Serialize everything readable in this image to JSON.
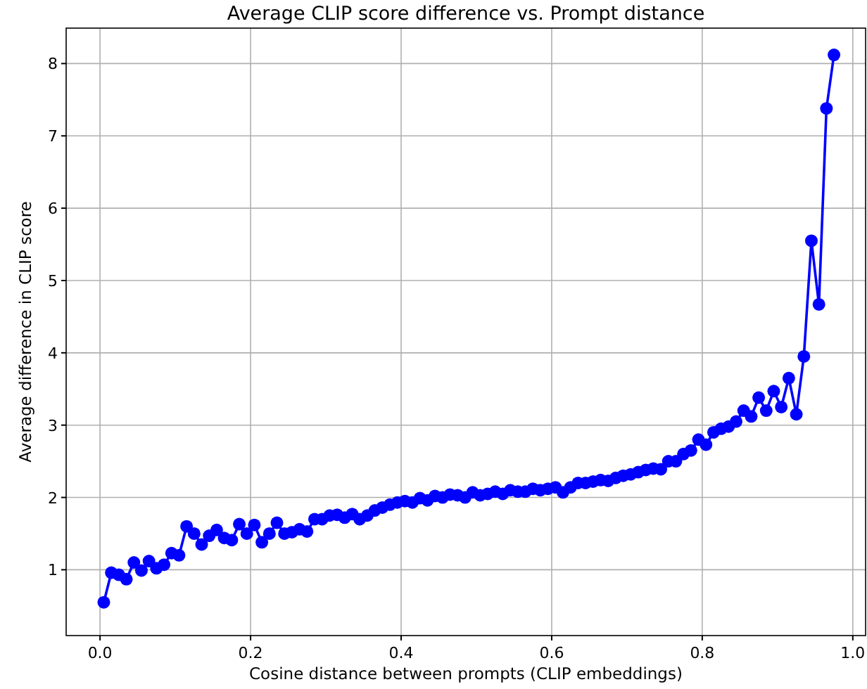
{
  "chart_data": {
    "type": "line",
    "title": "Average CLIP score difference vs. Prompt distance",
    "xlabel": "Cosine distance between prompts (CLIP embeddings)",
    "ylabel": "Average difference in CLIP score",
    "x": [
      0.005,
      0.015,
      0.025,
      0.035,
      0.045,
      0.055,
      0.065,
      0.075,
      0.085,
      0.095,
      0.105,
      0.115,
      0.125,
      0.135,
      0.145,
      0.155,
      0.165,
      0.175,
      0.185,
      0.195,
      0.205,
      0.215,
      0.225,
      0.235,
      0.245,
      0.255,
      0.265,
      0.275,
      0.285,
      0.295,
      0.305,
      0.315,
      0.325,
      0.335,
      0.345,
      0.355,
      0.365,
      0.375,
      0.385,
      0.395,
      0.405,
      0.415,
      0.425,
      0.435,
      0.445,
      0.455,
      0.465,
      0.475,
      0.485,
      0.495,
      0.505,
      0.515,
      0.525,
      0.535,
      0.545,
      0.555,
      0.565,
      0.575,
      0.585,
      0.595,
      0.605,
      0.615,
      0.625,
      0.635,
      0.645,
      0.655,
      0.665,
      0.675,
      0.685,
      0.695,
      0.705,
      0.715,
      0.725,
      0.735,
      0.745,
      0.755,
      0.765,
      0.775,
      0.785,
      0.795,
      0.805,
      0.815,
      0.825,
      0.835,
      0.845,
      0.855,
      0.865,
      0.875,
      0.885,
      0.895,
      0.905,
      0.915,
      0.925,
      0.935,
      0.945,
      0.955,
      0.965,
      0.975
    ],
    "series": [
      {
        "color": "#0000ff",
        "values": [
          0.55,
          0.96,
          0.93,
          0.87,
          1.1,
          0.99,
          1.12,
          1.02,
          1.07,
          1.23,
          1.2,
          1.6,
          1.5,
          1.35,
          1.47,
          1.55,
          1.44,
          1.41,
          1.63,
          1.5,
          1.62,
          1.38,
          1.5,
          1.65,
          1.5,
          1.52,
          1.56,
          1.53,
          1.7,
          1.7,
          1.75,
          1.76,
          1.72,
          1.77,
          1.7,
          1.75,
          1.82,
          1.86,
          1.9,
          1.93,
          1.95,
          1.93,
          1.99,
          1.96,
          2.02,
          2.0,
          2.04,
          2.03,
          2.0,
          2.07,
          2.03,
          2.05,
          2.08,
          2.05,
          2.1,
          2.08,
          2.08,
          2.12,
          2.1,
          2.12,
          2.14,
          2.07,
          2.14,
          2.2,
          2.2,
          2.22,
          2.24,
          2.23,
          2.27,
          2.3,
          2.32,
          2.35,
          2.38,
          2.4,
          2.39,
          2.5,
          2.5,
          2.6,
          2.65,
          2.8,
          2.73,
          2.9,
          2.95,
          2.98,
          3.05,
          3.2,
          3.12,
          3.38,
          3.2,
          3.47,
          3.25,
          3.65,
          3.15,
          3.95,
          5.55,
          4.67,
          7.38,
          8.12
        ]
      }
    ],
    "xlim": [
      -0.045,
      1.017
    ],
    "ylim": [
      0.09,
      8.49
    ],
    "xticks": [
      {
        "value": 0,
        "label": "0.0"
      },
      {
        "value": 0.2,
        "label": "0.2"
      },
      {
        "value": 0.4,
        "label": "0.4"
      },
      {
        "value": 0.6,
        "label": "0.6"
      },
      {
        "value": 0.8,
        "label": "0.8"
      },
      {
        "value": 1,
        "label": "1.0"
      }
    ],
    "yticks": [
      1,
      2,
      3,
      4,
      5,
      6,
      7,
      8
    ],
    "grid": true,
    "marker": "circle",
    "line_style": "solid"
  }
}
